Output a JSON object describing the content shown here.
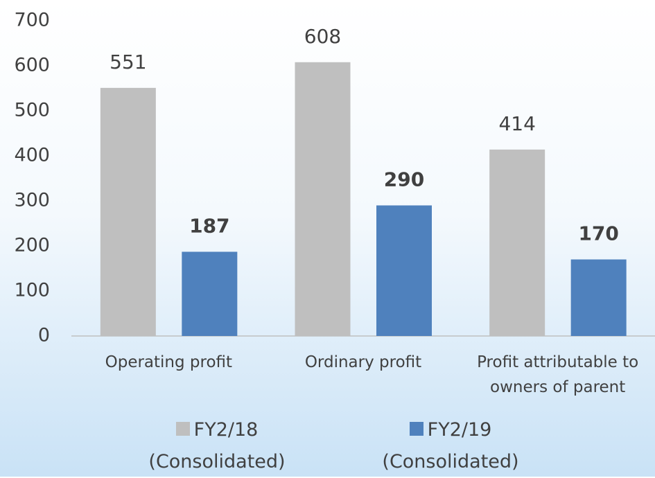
{
  "chart_data": {
    "type": "bar",
    "categories": [
      "Operating profit",
      "Ordinary profit",
      "Profit attributable to owners of parent"
    ],
    "series": [
      {
        "name": "FY2/18 (Consolidated)",
        "color": "#bfbfbf",
        "values": [
          551,
          608,
          414
        ]
      },
      {
        "name": "FY2/19 (Consolidated)",
        "color": "#4f81bd",
        "values": [
          187,
          290,
          170
        ]
      }
    ],
    "ylim": [
      0,
      700
    ],
    "yticks": [
      0,
      100,
      200,
      300,
      400,
      500,
      600,
      700
    ],
    "grid": false,
    "legend": "bottom"
  }
}
